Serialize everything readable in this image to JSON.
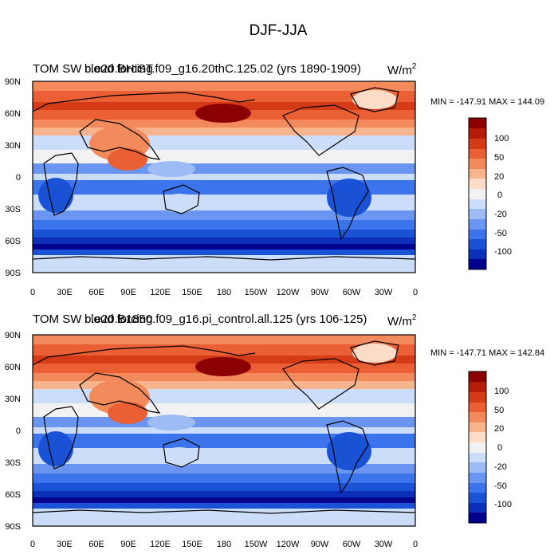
{
  "figure": {
    "title": "DJF-JJA"
  },
  "panels": [
    {
      "overlapping_titles": [
        "TOM SW cloud forcing",
        "b.e20.BHIST.f09_g16.20thC.125.02 (yrs 1890-1909)"
      ],
      "units_base": "W/m",
      "units_exp": "2",
      "stats": "MIN = -147.91 MAX = 144.09"
    },
    {
      "overlapping_titles": [
        "TOM SW cloud forcing",
        "b.e20.B1850.f09_g16.pi_control.all.125 (yrs 106-125)"
      ],
      "units_base": "W/m",
      "units_exp": "2",
      "stats": "MIN = -147.71 MAX = 142.84"
    }
  ],
  "axes": {
    "x_ticks": [
      "0",
      "30E",
      "60E",
      "90E",
      "120E",
      "150E",
      "180",
      "150W",
      "120W",
      "90W",
      "60W",
      "30W",
      "0"
    ],
    "y_ticks": [
      "90N",
      "60N",
      "30N",
      "0",
      "30S",
      "60S",
      "90S"
    ]
  },
  "colorbar": {
    "colors": [
      "#00008f",
      "#0c2fb9",
      "#1a52d6",
      "#3c74ec",
      "#6a96f2",
      "#9dbcf6",
      "#cbddf8",
      "#f2f2f2",
      "#fbdcc6",
      "#f8b48c",
      "#f38a5c",
      "#ea5f33",
      "#d63b17",
      "#b51d0a",
      "#8b0000"
    ],
    "labels": [
      "100",
      "50",
      "20",
      "0",
      "-20",
      "-50",
      "-100"
    ]
  }
}
